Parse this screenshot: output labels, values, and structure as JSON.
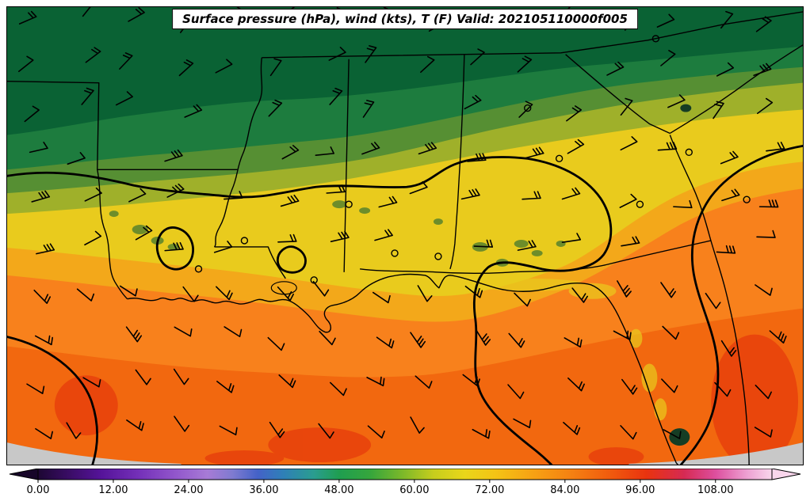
{
  "title": "Surface pressure (hPa), wind (kts), T (F) Valid: 202105110000f005",
  "colorbar": {
    "tick_labels": [
      "0.00",
      "12.00",
      "24.00",
      "36.00",
      "48.00",
      "60.00",
      "72.00",
      "84.00",
      "96.00",
      "108.00"
    ],
    "tick_values": [
      0,
      12,
      24,
      36,
      48,
      60,
      72,
      84,
      96,
      108
    ],
    "value_min": 0,
    "value_max": 117,
    "under_color": "#170629",
    "over_color": "#f9d6ec",
    "stops": [
      {
        "v": 0,
        "c": "#1d0733"
      },
      {
        "v": 5,
        "c": "#3a0d66"
      },
      {
        "v": 10,
        "c": "#551399"
      },
      {
        "v": 16,
        "c": "#7430b8"
      },
      {
        "v": 22,
        "c": "#9257cc"
      },
      {
        "v": 27,
        "c": "#a77bd6"
      },
      {
        "v": 31,
        "c": "#7f7bd0"
      },
      {
        "v": 35,
        "c": "#4462c8"
      },
      {
        "v": 39,
        "c": "#2f7fb8"
      },
      {
        "v": 44,
        "c": "#2a9d8f"
      },
      {
        "v": 48,
        "c": "#1f9e50"
      },
      {
        "v": 53,
        "c": "#36a63c"
      },
      {
        "v": 58,
        "c": "#7ab82a"
      },
      {
        "v": 63,
        "c": "#c6cd1d"
      },
      {
        "v": 68,
        "c": "#e9d61a"
      },
      {
        "v": 73,
        "c": "#f4c315"
      },
      {
        "v": 79,
        "c": "#f6a113"
      },
      {
        "v": 85,
        "c": "#f58112"
      },
      {
        "v": 91,
        "c": "#f15c0e"
      },
      {
        "v": 97,
        "c": "#e9330f"
      },
      {
        "v": 103,
        "c": "#d62a53"
      },
      {
        "v": 108,
        "c": "#dd4f9e"
      },
      {
        "v": 113,
        "c": "#eda0d2"
      },
      {
        "v": 117,
        "c": "#f9d6ec"
      }
    ]
  },
  "map": {
    "colors": {
      "band1": "#0a6234",
      "band2": "#1d7c3e",
      "band3": "#568f33",
      "band4": "#9fb02a",
      "band5": "#e9cb1d",
      "band6": "#f3a81a",
      "band7": "#f8811c",
      "band8": "#f2680f",
      "olive": "#6d8d2a",
      "red-patch": "#e8430c",
      "gray-edge": "#c8c8c8",
      "lake": "#153d24",
      "contour": "#000000",
      "geo": "#000000"
    }
  },
  "chart_data": {
    "type": "heatmap",
    "title": "Surface pressure (hPa), wind (kts), T (F) Valid: 202105110000f005",
    "variables": [
      "Surface pressure (hPa)",
      "wind (kts)",
      "T (F)"
    ],
    "valid_label": "202105110000f005",
    "colorbar_ticks": [
      0,
      12,
      24,
      36,
      48,
      60,
      72,
      84,
      96,
      108
    ],
    "colorbar_extend": "both",
    "legend_position": "bottom",
    "overlays": [
      "filled temperature field",
      "pressure contours",
      "wind barbs",
      "station circles",
      "state borders",
      "coastline"
    ]
  }
}
